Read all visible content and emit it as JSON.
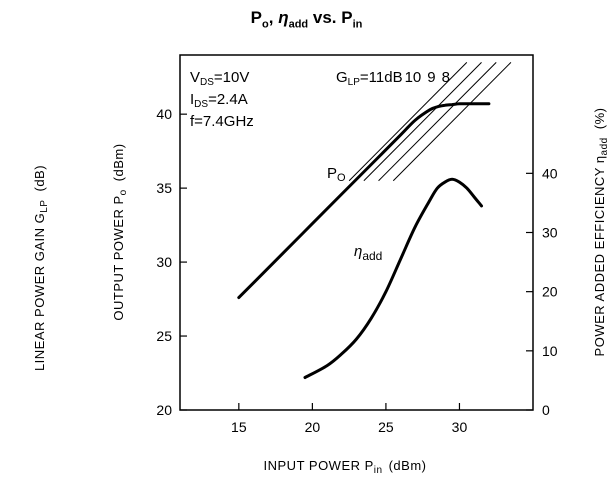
{
  "chart_data": {
    "type": "line",
    "title": {
      "p": "P",
      "p_sub": "o",
      "sep": ", ",
      "eta": "η",
      "eta_sub": "add",
      "vs": " vs. P",
      "pin_sub": "in"
    },
    "xlabel": {
      "main": "INPUT POWER  P",
      "sub": "in",
      "unit": "(dBm)"
    },
    "ylabel_left_outer": {
      "main": "LINEAR POWER GAIN  G",
      "sub": "LP",
      "unit": "(dB)"
    },
    "ylabel_left": {
      "main": "OUTPUT POWER  P",
      "sub": "o",
      "unit": "(dBm)"
    },
    "ylabel_right": {
      "main": "POWER ADDED EFFICIENCY  η",
      "sub": "add",
      "unit": "(%)"
    },
    "xlim": [
      11,
      35
    ],
    "ylim_left": [
      20,
      44
    ],
    "ylim_right": [
      0,
      60
    ],
    "x_ticks": [
      15,
      20,
      25,
      30
    ],
    "y_ticks_left": [
      20,
      25,
      30,
      35,
      40
    ],
    "y_ticks_right": [
      0,
      10,
      20,
      30,
      40
    ],
    "conditions": [
      "V DS =10V",
      "I DS =2.4A",
      "f=7.4GHz"
    ],
    "conditions_parts": [
      {
        "a": "V",
        "b": "DS",
        "c": "=10V"
      },
      {
        "a": "I",
        "b": "DS",
        "c": "=2.4A"
      },
      {
        "a": "f=7.4GHz",
        "b": "",
        "c": ""
      }
    ],
    "gain_label": {
      "a": "G",
      "b": "LP",
      "c": "=11dB",
      "d": "10",
      "e": "9",
      "f": "8"
    },
    "series": [
      {
        "name": "Po",
        "label_main": "P",
        "label_sub": "O",
        "axis": "left",
        "x": [
          15,
          18,
          20,
          22,
          24,
          26,
          27,
          28,
          28.5,
          29,
          29.5,
          30,
          30.5,
          31,
          32
        ],
        "y": [
          27.6,
          30.6,
          32.6,
          34.6,
          36.6,
          38.6,
          39.6,
          40.3,
          40.5,
          40.6,
          40.65,
          40.7,
          40.7,
          40.7,
          40.7
        ]
      },
      {
        "name": "ηadd",
        "label_main": "η",
        "label_sub": "add",
        "axis": "right",
        "x": [
          19.5,
          21,
          22,
          23,
          24,
          25,
          26,
          27,
          28,
          28.5,
          29,
          29.5,
          30,
          30.5,
          31,
          31.5
        ],
        "y": [
          5.5,
          7.5,
          9.5,
          12,
          15.5,
          20,
          25.5,
          31,
          35.5,
          37.5,
          38.5,
          39,
          38.5,
          37.5,
          36,
          34.5
        ]
      }
    ],
    "gain_lines": [
      {
        "gain": 11,
        "x": [
          22.5,
          30.5
        ],
        "y": [
          35.5,
          43.5
        ]
      },
      {
        "gain": 10,
        "x": [
          23.5,
          31.5
        ],
        "y": [
          35.5,
          43.5
        ]
      },
      {
        "gain": 9,
        "x": [
          24.5,
          32.5
        ],
        "y": [
          35.5,
          43.5
        ]
      },
      {
        "gain": 8,
        "x": [
          25.5,
          33.5
        ],
        "y": [
          35.5,
          43.5
        ]
      }
    ]
  }
}
